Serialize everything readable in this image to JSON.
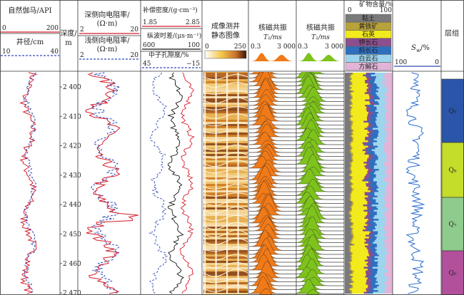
{
  "tracks": {
    "gr": {
      "title": "自然伽马/API",
      "min": "0",
      "max": "200",
      "gr_color": "#d61f2c",
      "cal_title": "井径/cm",
      "cal_min": "10",
      "cal_max": "40",
      "cal_color": "#2d49b6"
    },
    "depth": {
      "title1": "深度/",
      "title2": "m",
      "labels": [
        "2 400",
        "2 410",
        "2 420",
        "2 430",
        "2 440",
        "2 450",
        "2 460",
        "2 470"
      ]
    },
    "res": {
      "deep_title1": "深侧向电阻率/",
      "deep_title2": "(Ω·m)",
      "deep_min": "2",
      "deep_max": "20",
      "shallow_title1": "浅侧向电阻率/",
      "shallow_title2": "(Ω·m)",
      "shallow_min": "2",
      "shallow_max": "20"
    },
    "poro": {
      "den_title": "补偿密度/(g·cm⁻³)",
      "den_min": "1.85",
      "den_max": "2.85",
      "ac_title": "纵波时差/(μs·m⁻¹)",
      "ac_min": "600",
      "ac_max": "100",
      "cnl_title": "中子孔隙度/%",
      "cnl_min": "45",
      "cnl_max": "−15"
    },
    "image": {
      "title1": "成像测井",
      "title2": "静态图像",
      "scale_min": "0",
      "scale_max": "250"
    },
    "t1": {
      "title": "核磁共振",
      "sub": "T₁/ms",
      "min": "0.3",
      "max": "3 000",
      "color": "#f07a18"
    },
    "t2": {
      "title": "核磁共振",
      "sub": "T₂/ms",
      "min": "0.3",
      "max": "3 000",
      "color": "#7ec21c"
    },
    "mineral": {
      "title": "矿物含量/%",
      "min": "0",
      "max": "100",
      "legend": [
        {
          "name": "黏土",
          "color": "#7a7a7a"
        },
        {
          "name": "黄铁矿",
          "color": "#b8a23a"
        },
        {
          "name": "石英",
          "color": "#f2ea1c"
        },
        {
          "name": "钾长石",
          "color": "#8c4e8e"
        },
        {
          "name": "斜长石",
          "color": "#2f6fbf"
        },
        {
          "name": "白云石",
          "color": "#9ed5ee"
        },
        {
          "name": "方解石",
          "color": "#e2b5d8"
        }
      ]
    },
    "sw": {
      "title": "S",
      "sub": "w",
      "unit": "/%",
      "min": "100",
      "max": "0"
    },
    "layers": {
      "title": "层组",
      "items": [
        {
          "name": "Q₉",
          "color": "#2a55a8"
        },
        {
          "name": "Q₈",
          "color": "#c4dc2a"
        },
        {
          "name": "Q₇",
          "color": "#8fcb8c"
        },
        {
          "name": "Q₆",
          "color": "#b2509b"
        }
      ]
    }
  }
}
